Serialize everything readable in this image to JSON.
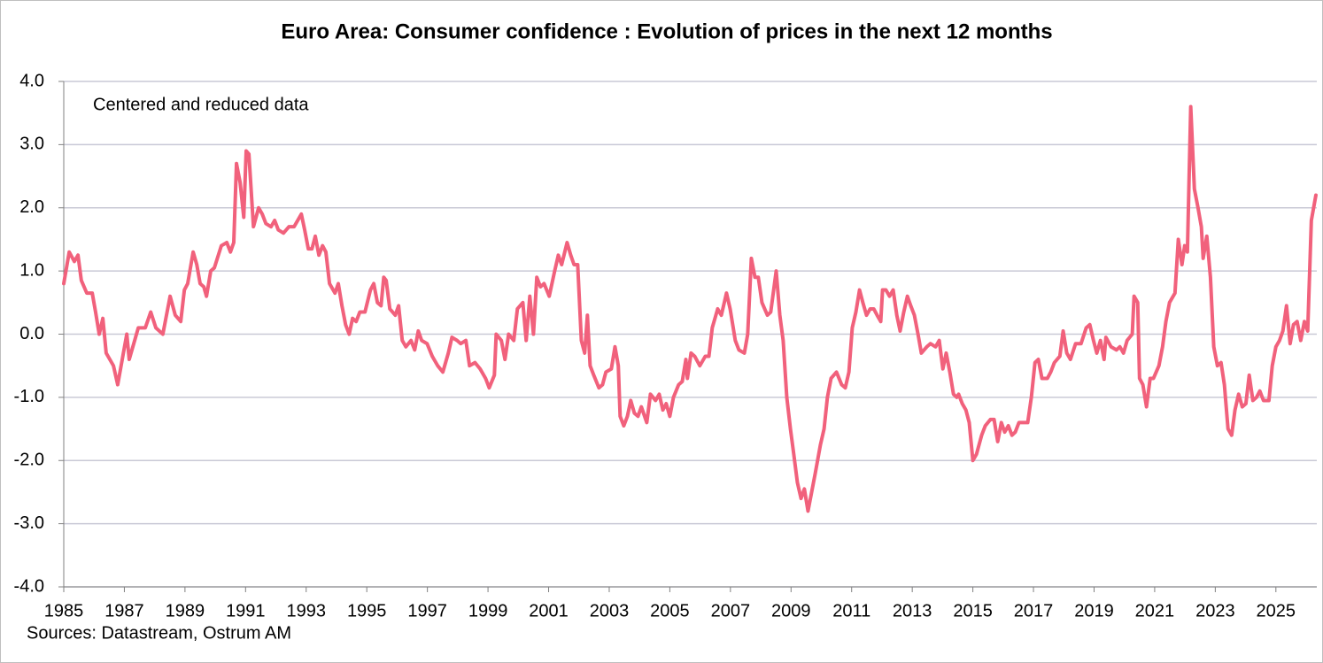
{
  "chart_data": {
    "type": "line",
    "title": "Euro Area:  Consumer confidence : Evolution of prices in the next 12 months",
    "annotation": "Centered and reduced data",
    "source": "Sources: Datastream, Ostrum AM",
    "x": [
      1985.0,
      1985.18,
      1985.35,
      1985.47,
      1985.58,
      1985.76,
      1985.94,
      1986.05,
      1986.17,
      1986.29,
      1986.4,
      1986.64,
      1986.78,
      1986.93,
      1987.08,
      1987.16,
      1987.28,
      1987.46,
      1987.69,
      1987.87,
      1988.04,
      1988.27,
      1988.51,
      1988.68,
      1988.86,
      1988.98,
      1989.09,
      1989.27,
      1989.39,
      1989.5,
      1989.62,
      1989.71,
      1989.85,
      1989.97,
      1990.2,
      1990.38,
      1990.5,
      1990.61,
      1990.7,
      1990.82,
      1990.94,
      1991.02,
      1991.11,
      1991.26,
      1991.43,
      1991.55,
      1991.67,
      1991.84,
      1991.96,
      1992.08,
      1992.25,
      1992.43,
      1992.6,
      1992.84,
      1992.95,
      1993.07,
      1993.19,
      1993.3,
      1993.42,
      1993.54,
      1993.65,
      1993.77,
      1993.95,
      1994.06,
      1994.18,
      1994.3,
      1994.42,
      1994.53,
      1994.65,
      1994.77,
      1994.94,
      1995.12,
      1995.23,
      1995.35,
      1995.47,
      1995.56,
      1995.64,
      1995.76,
      1995.94,
      1996.05,
      1996.17,
      1996.29,
      1996.46,
      1996.58,
      1996.7,
      1996.81,
      1996.99,
      1997.16,
      1997.34,
      1997.51,
      1997.69,
      1997.81,
      1997.98,
      1998.1,
      1998.27,
      1998.39,
      1998.57,
      1998.74,
      1998.92,
      1999.04,
      1999.21,
      1999.27,
      1999.44,
      1999.56,
      1999.68,
      1999.85,
      1999.97,
      2000.15,
      2000.26,
      2000.38,
      2000.5,
      2000.61,
      2000.73,
      2000.85,
      2001.02,
      2001.2,
      2001.32,
      2001.43,
      2001.61,
      2001.73,
      2001.84,
      2001.96,
      2002.08,
      2002.19,
      2002.28,
      2002.37,
      2002.49,
      2002.66,
      2002.78,
      2002.89,
      2003.07,
      2003.19,
      2003.3,
      2003.36,
      2003.48,
      2003.6,
      2003.71,
      2003.83,
      2003.95,
      2004.06,
      2004.24,
      2004.36,
      2004.53,
      2004.65,
      2004.77,
      2004.88,
      2005.0,
      2005.12,
      2005.29,
      2005.41,
      2005.53,
      2005.58,
      2005.7,
      2005.82,
      2005.99,
      2006.17,
      2006.29,
      2006.4,
      2006.58,
      2006.7,
      2006.87,
      2006.99,
      2007.16,
      2007.28,
      2007.46,
      2007.57,
      2007.69,
      2007.81,
      2007.92,
      2008.04,
      2008.22,
      2008.33,
      2008.51,
      2008.63,
      2008.74,
      2008.86,
      2008.98,
      2009.09,
      2009.21,
      2009.33,
      2009.44,
      2009.56,
      2009.68,
      2009.8,
      2009.97,
      2010.09,
      2010.2,
      2010.32,
      2010.5,
      2010.67,
      2010.79,
      2010.91,
      2011.02,
      2011.14,
      2011.26,
      2011.37,
      2011.49,
      2011.61,
      2011.73,
      2011.84,
      2011.96,
      2012.02,
      2012.13,
      2012.25,
      2012.37,
      2012.49,
      2012.6,
      2012.72,
      2012.84,
      2012.95,
      2013.07,
      2013.19,
      2013.3,
      2013.48,
      2013.6,
      2013.77,
      2013.89,
      2014.01,
      2014.12,
      2014.24,
      2014.36,
      2014.47,
      2014.53,
      2014.65,
      2014.77,
      2014.88,
      2015.0,
      2015.12,
      2015.29,
      2015.41,
      2015.58,
      2015.7,
      2015.82,
      2015.94,
      2016.05,
      2016.17,
      2016.29,
      2016.4,
      2016.52,
      2016.7,
      2016.81,
      2016.93,
      2017.05,
      2017.16,
      2017.28,
      2017.46,
      2017.57,
      2017.69,
      2017.87,
      2017.98,
      2018.1,
      2018.22,
      2018.39,
      2018.57,
      2018.74,
      2018.86,
      2018.98,
      2019.09,
      2019.21,
      2019.33,
      2019.39,
      2019.56,
      2019.74,
      2019.85,
      2019.97,
      2020.09,
      2020.26,
      2020.32,
      2020.44,
      2020.5,
      2020.61,
      2020.73,
      2020.85,
      2020.96,
      2021.14,
      2021.26,
      2021.37,
      2021.49,
      2021.67,
      2021.78,
      2021.9,
      2021.99,
      2022.08,
      2022.19,
      2022.31,
      2022.43,
      2022.54,
      2022.6,
      2022.72,
      2022.84,
      2022.95,
      2023.07,
      2023.19,
      2023.3,
      2023.42,
      2023.54,
      2023.65,
      2023.77,
      2023.89,
      2024.01,
      2024.12,
      2024.24,
      2024.36,
      2024.47,
      2024.59,
      2024.77,
      2024.88,
      2025.0,
      2025.12,
      2025.23,
      2025.35,
      2025.47,
      2025.58,
      2025.7,
      2025.82,
      2025.94,
      2026.05,
      2026.17,
      2026.32
    ],
    "series": [
      {
        "color": "#f1617c",
        "values": [
          0.8,
          1.3,
          1.15,
          1.25,
          0.85,
          0.65,
          0.65,
          0.35,
          0.0,
          0.25,
          -0.3,
          -0.5,
          -0.8,
          -0.4,
          0.0,
          -0.4,
          -0.2,
          0.1,
          0.1,
          0.35,
          0.1,
          0.0,
          0.6,
          0.3,
          0.2,
          0.7,
          0.8,
          1.3,
          1.1,
          0.8,
          0.75,
          0.6,
          1.0,
          1.05,
          1.4,
          1.45,
          1.3,
          1.45,
          2.7,
          2.4,
          1.85,
          2.9,
          2.85,
          1.7,
          2.0,
          1.9,
          1.75,
          1.7,
          1.8,
          1.65,
          1.6,
          1.7,
          1.7,
          1.9,
          1.65,
          1.35,
          1.35,
          1.55,
          1.25,
          1.4,
          1.3,
          0.8,
          0.65,
          0.8,
          0.45,
          0.15,
          0.0,
          0.25,
          0.2,
          0.35,
          0.35,
          0.7,
          0.8,
          0.5,
          0.45,
          0.9,
          0.85,
          0.4,
          0.3,
          0.45,
          -0.1,
          -0.2,
          -0.1,
          -0.25,
          0.05,
          -0.1,
          -0.15,
          -0.35,
          -0.5,
          -0.6,
          -0.3,
          -0.05,
          -0.1,
          -0.15,
          -0.1,
          -0.5,
          -0.45,
          -0.55,
          -0.7,
          -0.85,
          -0.65,
          0.0,
          -0.1,
          -0.4,
          0.0,
          -0.1,
          0.4,
          0.5,
          -0.1,
          0.6,
          0.0,
          0.9,
          0.75,
          0.8,
          0.6,
          1.0,
          1.25,
          1.1,
          1.45,
          1.25,
          1.1,
          1.1,
          -0.1,
          -0.3,
          0.3,
          -0.5,
          -0.65,
          -0.85,
          -0.8,
          -0.6,
          -0.55,
          -0.2,
          -0.5,
          -1.3,
          -1.45,
          -1.3,
          -1.05,
          -1.25,
          -1.3,
          -1.15,
          -1.4,
          -0.95,
          -1.05,
          -0.95,
          -1.2,
          -1.1,
          -1.3,
          -1.0,
          -0.8,
          -0.75,
          -0.4,
          -0.7,
          -0.3,
          -0.35,
          -0.5,
          -0.35,
          -0.35,
          0.1,
          0.4,
          0.3,
          0.65,
          0.4,
          -0.1,
          -0.25,
          -0.3,
          0.0,
          1.2,
          0.9,
          0.9,
          0.5,
          0.3,
          0.35,
          1.0,
          0.3,
          -0.1,
          -1.0,
          -1.5,
          -1.9,
          -2.35,
          -2.6,
          -2.45,
          -2.8,
          -2.5,
          -2.2,
          -1.75,
          -1.5,
          -1.0,
          -0.7,
          -0.6,
          -0.8,
          -0.85,
          -0.6,
          0.1,
          0.35,
          0.7,
          0.5,
          0.3,
          0.4,
          0.4,
          0.3,
          0.2,
          0.7,
          0.7,
          0.6,
          0.7,
          0.3,
          0.05,
          0.35,
          0.6,
          0.45,
          0.3,
          0.0,
          -0.3,
          -0.2,
          -0.15,
          -0.2,
          -0.1,
          -0.55,
          -0.3,
          -0.6,
          -0.95,
          -1.0,
          -0.95,
          -1.1,
          -1.2,
          -1.4,
          -2.0,
          -1.9,
          -1.6,
          -1.45,
          -1.35,
          -1.35,
          -1.7,
          -1.4,
          -1.55,
          -1.45,
          -1.6,
          -1.55,
          -1.4,
          -1.4,
          -1.4,
          -1.0,
          -0.45,
          -0.4,
          -0.7,
          -0.7,
          -0.6,
          -0.45,
          -0.35,
          0.05,
          -0.3,
          -0.4,
          -0.15,
          -0.15,
          0.1,
          0.15,
          -0.1,
          -0.3,
          -0.1,
          -0.4,
          -0.05,
          -0.2,
          -0.25,
          -0.2,
          -0.3,
          -0.1,
          0.0,
          0.6,
          0.5,
          -0.7,
          -0.8,
          -1.15,
          -0.7,
          -0.7,
          -0.5,
          -0.2,
          0.2,
          0.5,
          0.65,
          1.5,
          1.1,
          1.4,
          1.3,
          3.6,
          2.3,
          2.0,
          1.7,
          1.2,
          1.55,
          0.9,
          -0.2,
          -0.5,
          -0.45,
          -0.8,
          -1.5,
          -1.6,
          -1.2,
          -0.95,
          -1.15,
          -1.1,
          -0.65,
          -1.05,
          -1.0,
          -0.9,
          -1.05,
          -1.05,
          -0.5,
          -0.2,
          -0.1,
          0.05,
          0.45,
          -0.15,
          0.15,
          0.2,
          -0.1,
          0.2,
          0.05,
          1.8,
          2.2
        ]
      }
    ],
    "xlim": [
      1985,
      2026.35
    ],
    "xticks": [
      1985,
      1987,
      1989,
      1991,
      1993,
      1995,
      1997,
      1999,
      2001,
      2003,
      2005,
      2007,
      2009,
      2011,
      2013,
      2015,
      2017,
      2019,
      2021,
      2023,
      2025
    ],
    "ylim": [
      -4,
      4
    ],
    "yticks": [
      {
        "value": -4,
        "label": "-4.0"
      },
      {
        "value": -3,
        "label": "-3.0"
      },
      {
        "value": -2,
        "label": "-2.0"
      },
      {
        "value": -1,
        "label": "-1.0"
      },
      {
        "value": 0,
        "label": "0.0"
      },
      {
        "value": 1,
        "label": "1.0"
      },
      {
        "value": 2,
        "label": "2.0"
      },
      {
        "value": 3,
        "label": "3.0"
      },
      {
        "value": 4,
        "label": "4.0"
      }
    ],
    "grid": true
  }
}
